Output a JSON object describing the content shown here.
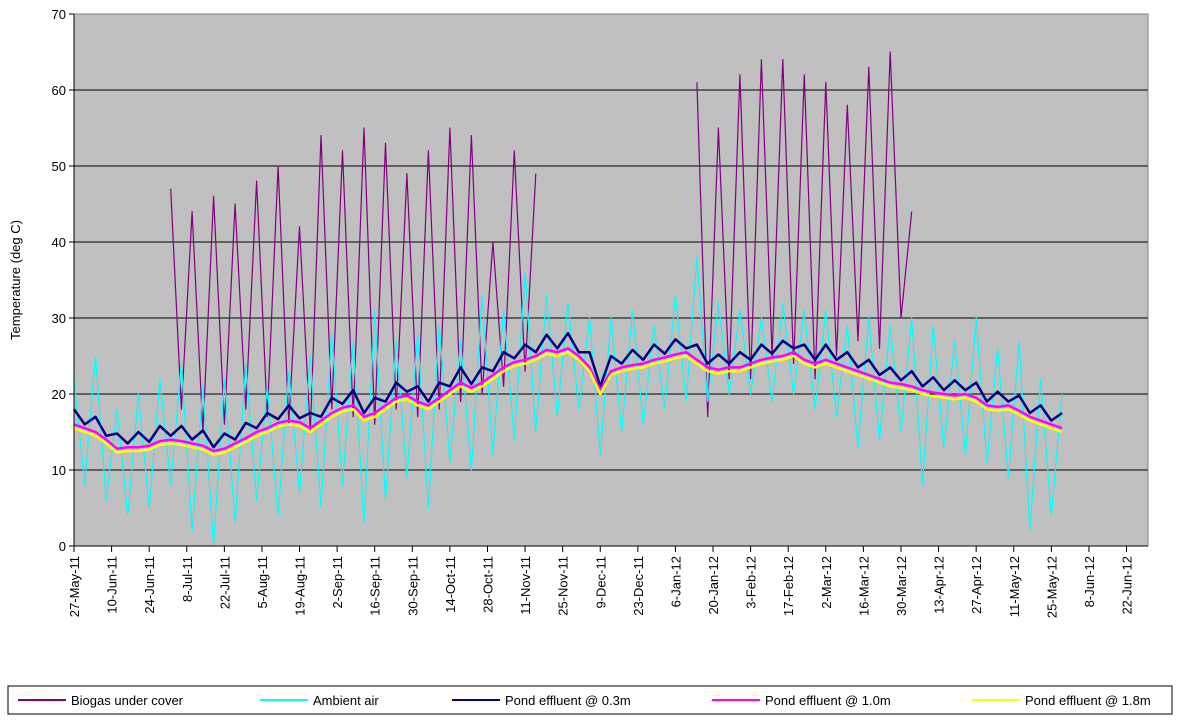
{
  "chart_data": {
    "type": "line",
    "y_label": "Temperature (deg C)",
    "xlim": [
      "27-May-11",
      "30-Jun-12"
    ],
    "ylim": [
      0,
      70
    ],
    "yticks": [
      0,
      10,
      20,
      30,
      40,
      50,
      60,
      70
    ],
    "xticks": [
      "27-May-11",
      "10-Jun-11",
      "24-Jun-11",
      "8-Jul-11",
      "22-Jul-11",
      "5-Aug-11",
      "19-Aug-11",
      "2-Sep-11",
      "16-Sep-11",
      "30-Sep-11",
      "14-Oct-11",
      "28-Oct-11",
      "11-Nov-11",
      "25-Nov-11",
      "9-Dec-11",
      "23-Dec-11",
      "6-Jan-12",
      "20-Jan-12",
      "3-Feb-12",
      "17-Feb-12",
      "2-Mar-12",
      "16-Mar-12",
      "30-Mar-12",
      "13-Apr-12",
      "27-Apr-12",
      "11-May-12",
      "25-May-12",
      "8-Jun-12",
      "22-Jun-12"
    ],
    "grid": true,
    "background": "#c0c0c0",
    "legend": "bottom",
    "x": [
      "27-May-11",
      "31-May-11",
      "4-Jun-11",
      "8-Jun-11",
      "12-Jun-11",
      "16-Jun-11",
      "20-Jun-11",
      "24-Jun-11",
      "28-Jun-11",
      "2-Jul-11",
      "6-Jul-11",
      "10-Jul-11",
      "14-Jul-11",
      "18-Jul-11",
      "22-Jul-11",
      "26-Jul-11",
      "30-Jul-11",
      "3-Aug-11",
      "7-Aug-11",
      "11-Aug-11",
      "15-Aug-11",
      "19-Aug-11",
      "23-Aug-11",
      "27-Aug-11",
      "31-Aug-11",
      "4-Sep-11",
      "8-Sep-11",
      "12-Sep-11",
      "16-Sep-11",
      "20-Sep-11",
      "24-Sep-11",
      "28-Sep-11",
      "2-Oct-11",
      "6-Oct-11",
      "10-Oct-11",
      "14-Oct-11",
      "18-Oct-11",
      "22-Oct-11",
      "26-Oct-11",
      "30-Oct-11",
      "3-Nov-11",
      "7-Nov-11",
      "11-Nov-11",
      "15-Nov-11",
      "19-Nov-11",
      "23-Nov-11",
      "27-Nov-11",
      "1-Dec-11",
      "5-Dec-11",
      "9-Dec-11",
      "13-Dec-11",
      "17-Dec-11",
      "21-Dec-11",
      "25-Dec-11",
      "29-Dec-11",
      "2-Jan-12",
      "6-Jan-12",
      "10-Jan-12",
      "14-Jan-12",
      "18-Jan-12",
      "22-Jan-12",
      "26-Jan-12",
      "30-Jan-12",
      "3-Feb-12",
      "7-Feb-12",
      "11-Feb-12",
      "15-Feb-12",
      "19-Feb-12",
      "23-Feb-12",
      "27-Feb-12",
      "2-Mar-12",
      "6-Mar-12",
      "10-Mar-12",
      "14-Mar-12",
      "18-Mar-12",
      "22-Mar-12",
      "26-Mar-12",
      "30-Mar-12",
      "3-Apr-12",
      "7-Apr-12",
      "11-Apr-12",
      "15-Apr-12",
      "19-Apr-12",
      "23-Apr-12",
      "27-Apr-12",
      "1-May-12",
      "5-May-12",
      "9-May-12",
      "13-May-12",
      "17-May-12",
      "21-May-12",
      "25-May-12",
      "29-May-12"
    ],
    "series": [
      {
        "name": "Biogas under cover",
        "color": "#800080",
        "values": [
          null,
          null,
          null,
          null,
          null,
          null,
          null,
          null,
          null,
          47,
          18,
          44,
          15,
          46,
          16,
          45,
          18,
          48,
          17,
          50,
          16,
          42,
          15,
          54,
          18,
          52,
          17,
          55,
          16,
          53,
          18,
          49,
          17,
          52,
          18,
          55,
          19,
          54,
          20,
          40,
          21,
          52,
          23,
          49,
          null,
          null,
          null,
          null,
          null,
          null,
          null,
          null,
          null,
          null,
          null,
          null,
          null,
          null,
          61,
          17,
          55,
          22,
          62,
          22,
          64,
          25,
          64,
          24,
          62,
          22,
          61,
          25,
          58,
          27,
          63,
          26,
          65,
          30,
          44,
          null,
          null,
          null,
          null,
          null,
          null,
          null,
          null,
          null,
          null,
          null,
          null,
          null,
          null
        ]
      },
      {
        "name": "Ambient air",
        "color": "#00ffff",
        "values": [
          22,
          8,
          25,
          6,
          18,
          4,
          20,
          5,
          22,
          8,
          24,
          2,
          21,
          0,
          22,
          3,
          24,
          6,
          21,
          4,
          23,
          7,
          25,
          5,
          28,
          8,
          27,
          3,
          31,
          6,
          27,
          9,
          28,
          5,
          29,
          11,
          27,
          10,
          33,
          12,
          31,
          14,
          36,
          15,
          33,
          17,
          32,
          18,
          30,
          12,
          30,
          15,
          31,
          16,
          29,
          18,
          33,
          19,
          38,
          19,
          32,
          20,
          31,
          20,
          30,
          19,
          32,
          20,
          31,
          18,
          31,
          17,
          29,
          13,
          30,
          14,
          29,
          15,
          30,
          8,
          29,
          13,
          27,
          12,
          30,
          11,
          26,
          9,
          27,
          2,
          22,
          4,
          20
        ]
      },
      {
        "name": "Pond effluent @ 0.3m",
        "color": "#000080",
        "values": [
          18,
          16,
          17,
          14.5,
          14.8,
          13.5,
          15,
          13.7,
          15.8,
          14.5,
          15.8,
          14,
          15.2,
          13,
          14.8,
          14,
          16.2,
          15.5,
          17.5,
          16.7,
          18.5,
          16.8,
          17.5,
          17,
          19.5,
          18.7,
          20.5,
          17.5,
          19.5,
          19,
          21.5,
          20.3,
          21,
          19,
          21.5,
          21,
          23.5,
          21.3,
          23.5,
          23,
          25.5,
          24.7,
          26.5,
          25.5,
          27.8,
          26,
          28,
          25.5,
          25.5,
          21,
          25,
          24,
          25.8,
          24.5,
          26.5,
          25.3,
          27.2,
          26,
          26.5,
          24,
          25.2,
          24,
          25.5,
          24.5,
          26.5,
          25.3,
          27,
          26,
          26.5,
          24.5,
          26.5,
          24.5,
          25.5,
          23.5,
          24.5,
          22.5,
          23.5,
          21.8,
          23,
          21,
          22.2,
          20.5,
          21.8,
          20.5,
          21.5,
          19,
          20.3,
          19,
          19.8,
          17.5,
          18.5,
          16.5,
          17.5
        ]
      },
      {
        "name": "Pond effluent @ 1.0m",
        "color": "#ff00ff",
        "values": [
          16,
          15.5,
          15,
          14,
          12.8,
          13,
          13,
          13.2,
          13.8,
          14,
          13.8,
          13.5,
          13.2,
          12.5,
          12.8,
          13.5,
          14.2,
          15,
          15.5,
          16.2,
          16.5,
          16.3,
          15.5,
          16.5,
          17.5,
          18.2,
          18.5,
          17,
          17.5,
          18.5,
          19.5,
          19.8,
          19,
          18.5,
          19.5,
          20.5,
          21.5,
          20.8,
          21.5,
          22.5,
          23.5,
          24.2,
          24.5,
          25,
          25.8,
          25.5,
          26,
          25,
          23.5,
          20.5,
          23,
          23.5,
          23.8,
          24,
          24.5,
          24.8,
          25.2,
          25.5,
          24.5,
          23.5,
          23.2,
          23.5,
          23.5,
          24,
          24.5,
          24.8,
          25,
          25.5,
          24.5,
          24,
          24.5,
          24,
          23.5,
          23,
          22.5,
          22,
          21.5,
          21.3,
          21,
          20.5,
          20.2,
          20,
          19.8,
          20,
          19.5,
          18.5,
          18.3,
          18.5,
          17.8,
          17,
          16.5,
          16,
          15.5
        ]
      },
      {
        "name": "Pond effluent @ 1.8m",
        "color": "#ffff00",
        "values": [
          15.5,
          15,
          14.5,
          13.5,
          12.3,
          12.5,
          12.5,
          12.7,
          13.3,
          13.5,
          13.3,
          13,
          12.7,
          12,
          12.3,
          13,
          13.7,
          14.5,
          15,
          15.7,
          16,
          15.8,
          15,
          16,
          17,
          17.7,
          18,
          16.5,
          17,
          18,
          19,
          19.3,
          18.5,
          18,
          19,
          20,
          21,
          20.3,
          21,
          22,
          23,
          23.7,
          24,
          24.5,
          25.3,
          25,
          25.5,
          24.5,
          23,
          20,
          22.5,
          23,
          23.3,
          23.5,
          24,
          24.3,
          24.7,
          25,
          24,
          23,
          22.7,
          23,
          23,
          23.5,
          24,
          24.3,
          24.5,
          25,
          24,
          23.5,
          24,
          23.5,
          23,
          22.5,
          22,
          21.5,
          21,
          20.8,
          20.5,
          20,
          19.7,
          19.5,
          19.3,
          19.5,
          19,
          18,
          17.8,
          18,
          17.3,
          16.5,
          16,
          15.5,
          15
        ]
      }
    ]
  }
}
